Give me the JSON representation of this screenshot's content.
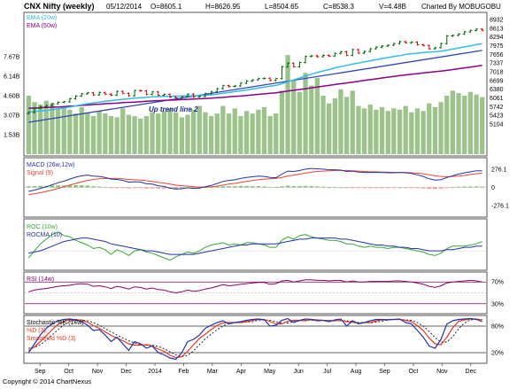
{
  "header": {
    "symbol": "CNX Nifty (weekly)",
    "date": "05/12/2014",
    "open": "O=8605.1",
    "high": "H=8626.95",
    "low": "L=8504.65",
    "close": "C=8538.3",
    "volume": "V=4.48B",
    "credit": "Charted By MOBUGOBU"
  },
  "footer": {
    "copyright": "Copyright © 2014 ChartNexus"
  },
  "colors": {
    "candle_up": "#006400",
    "candle_down": "#cc0000",
    "ema20": "#33bbee",
    "ema50": "#8b008b",
    "trendline": "#3344bb",
    "vol_bar": "#9cc48a",
    "macd": "#2233aa",
    "signal": "#ee4433",
    "hist_pos": "#88c070",
    "hist_neg": "#f09080",
    "roc": "#33aa33",
    "rocma": "#2233aa",
    "rsi": "#880066",
    "stoch_k": "#2233aa",
    "stoch_d": "#ee3322",
    "smoothed_d": "#111111",
    "panel_border": "#555555",
    "level_line": "#800060"
  },
  "chart_data": [
    {
      "type": "candlestick",
      "title": "CNX Nifty (weekly)",
      "y_axis_labels": [
        "8932",
        "8613",
        "8294",
        "7975",
        "7656",
        "7337",
        "7018",
        "6699",
        "6380",
        "6061",
        "5742",
        "5423",
        "5104"
      ],
      "ylim": [
        5104,
        8932
      ],
      "x_axis_labels": [
        "Sep",
        "Oct",
        "Nov",
        "Dec",
        "2014",
        "Feb",
        "Mar",
        "Apr",
        "May",
        "Jun",
        "Jul",
        "Aug",
        "Sep",
        "Oct",
        "Nov",
        "Dec"
      ],
      "legend": [
        "EMA (20w)",
        "EMA (50w)"
      ],
      "annotation": "Up trend line 2",
      "close": [
        5530,
        5680,
        5740,
        5780,
        5850,
        5900,
        5920,
        6030,
        6130,
        6210,
        6250,
        6170,
        6260,
        6200,
        6160,
        6300,
        6230,
        6140,
        6330,
        6320,
        6190,
        6280,
        6160,
        6190,
        6090,
        6060,
        6110,
        6200,
        6100,
        6120,
        6220,
        6280,
        6400,
        6510,
        6480,
        6500,
        6600,
        6680,
        6720,
        6770,
        6780,
        6700,
        6770,
        7200,
        7330,
        7200,
        7360,
        7580,
        7600,
        7570,
        7620,
        7590,
        7690,
        7750,
        7620,
        7830,
        7700,
        7760,
        7860,
        7920,
        7960,
        7990,
        8050,
        8120,
        8080,
        8100,
        8010,
        7980,
        7860,
        7900,
        8050,
        8330,
        8350,
        8400,
        8480,
        8530,
        8580,
        8538
      ],
      "ema_20w": [
        5550,
        5560,
        5580,
        5600,
        5630,
        5660,
        5690,
        5730,
        5770,
        5810,
        5850,
        5880,
        5910,
        5940,
        5960,
        5990,
        6010,
        6030,
        6050,
        6070,
        6080,
        6100,
        6110,
        6120,
        6120,
        6130,
        6130,
        6140,
        6140,
        6150,
        6160,
        6170,
        6200,
        6230,
        6260,
        6290,
        6320,
        6350,
        6390,
        6420,
        6460,
        6490,
        6520,
        6580,
        6650,
        6720,
        6790,
        6860,
        6930,
        6990,
        7050,
        7100,
        7160,
        7210,
        7250,
        7300,
        7340,
        7380,
        7420,
        7460,
        7500,
        7540,
        7580,
        7610,
        7650,
        7680,
        7700,
        7720,
        7740,
        7750,
        7770,
        7810,
        7850,
        7890,
        7930,
        7970,
        8010,
        8050
      ],
      "ema_50w": [
        5680,
        5690,
        5700,
        5710,
        5720,
        5730,
        5740,
        5760,
        5770,
        5790,
        5800,
        5820,
        5830,
        5850,
        5860,
        5870,
        5890,
        5900,
        5910,
        5920,
        5940,
        5950,
        5960,
        5970,
        5980,
        5990,
        6000,
        6010,
        6020,
        6030,
        6040,
        6050,
        6070,
        6080,
        6100,
        6120,
        6130,
        6150,
        6170,
        6190,
        6210,
        6230,
        6250,
        6280,
        6310,
        6340,
        6370,
        6400,
        6430,
        6460,
        6490,
        6520,
        6550,
        6580,
        6610,
        6640,
        6670,
        6700,
        6730,
        6760,
        6790,
        6820,
        6850,
        6880,
        6900,
        6930,
        6950,
        6980,
        7000,
        7020,
        7040,
        7070,
        7100,
        7130,
        7160,
        7190,
        7220,
        7250
      ],
      "trendline": {
        "from": 5170,
        "to": 7800
      }
    },
    {
      "type": "bar",
      "title": "Volume",
      "y_axis_labels": [
        "7.67B",
        "6.14B",
        "4.60B",
        "3.07B",
        "1.53B"
      ],
      "ylim": [
        0,
        9.2
      ],
      "values": [
        4.6,
        4.1,
        3.9,
        4.2,
        4.0,
        3.6,
        3.8,
        3.5,
        3.2,
        3.7,
        3.3,
        3.0,
        3.4,
        3.2,
        3.0,
        2.9,
        3.6,
        3.1,
        3.0,
        2.8,
        3.0,
        3.3,
        3.2,
        3.4,
        3.6,
        3.3,
        2.9,
        3.1,
        3.5,
        3.8,
        3.3,
        3.0,
        3.2,
        3.8,
        3.2,
        3.6,
        3.0,
        3.4,
        3.2,
        3.5,
        3.7,
        3.0,
        3.2,
        5.0,
        7.8,
        5.8,
        4.9,
        6.4,
        5.4,
        6.0,
        4.6,
        4.0,
        4.4,
        5.1,
        4.5,
        5.0,
        3.8,
        3.6,
        3.9,
        3.5,
        3.7,
        3.4,
        3.6,
        3.5,
        3.8,
        3.3,
        3.6,
        3.4,
        4.0,
        3.7,
        4.1,
        4.6,
        5.0,
        4.8,
        4.6,
        4.9,
        4.7,
        4.48
      ]
    },
    {
      "type": "line",
      "title": "MACD (26w,12w)",
      "legend": [
        "MACD (26w,12w)",
        "Signal (9)"
      ],
      "y_axis_labels": [
        "276.1",
        "0",
        "-276.1"
      ],
      "ylim": [
        -420,
        420
      ],
      "macd": [
        -60,
        -40,
        -15,
        10,
        40,
        70,
        95,
        125,
        155,
        175,
        185,
        170,
        165,
        150,
        125,
        120,
        105,
        80,
        85,
        80,
        55,
        50,
        25,
        15,
        -10,
        -25,
        -20,
        -5,
        -15,
        -10,
        10,
        30,
        60,
        90,
        105,
        115,
        135,
        150,
        160,
        170,
        165,
        150,
        145,
        200,
        245,
        240,
        255,
        275,
        285,
        280,
        275,
        265,
        265,
        260,
        240,
        245,
        230,
        225,
        225,
        225,
        225,
        220,
        220,
        225,
        220,
        210,
        190,
        165,
        130,
        110,
        115,
        150,
        175,
        200,
        220,
        235,
        250,
        250
      ],
      "signal": [
        -110,
        -95,
        -80,
        -60,
        -40,
        -15,
        10,
        35,
        60,
        85,
        105,
        120,
        130,
        135,
        135,
        135,
        130,
        120,
        115,
        110,
        100,
        90,
        75,
        65,
        50,
        35,
        25,
        20,
        10,
        5,
        5,
        10,
        20,
        35,
        50,
        60,
        75,
        90,
        105,
        115,
        125,
        130,
        135,
        150,
        170,
        185,
        200,
        215,
        230,
        240,
        245,
        250,
        255,
        255,
        255,
        250,
        245,
        240,
        235,
        235,
        230,
        230,
        225,
        225,
        225,
        220,
        215,
        205,
        190,
        175,
        165,
        160,
        165,
        170,
        180,
        195,
        205,
        215
      ]
    },
    {
      "type": "line",
      "title": "ROC (10w)",
      "legend": [
        "ROC (10w)",
        "ROCMA (10)"
      ],
      "ylim": [
        -15,
        25
      ],
      "roc": [
        -6,
        0,
        6,
        10,
        14,
        16,
        13,
        12,
        9,
        7,
        5,
        2,
        3,
        1,
        -3,
        1,
        -1,
        -4,
        0,
        1,
        -1,
        -2,
        -4,
        -6,
        -8,
        -5,
        -3,
        -1,
        -2,
        0,
        3,
        5,
        6,
        7,
        5,
        6,
        5,
        7,
        7,
        6,
        5,
        3,
        3,
        9,
        12,
        10,
        13,
        14,
        12,
        11,
        10,
        9,
        9,
        8,
        6,
        6,
        4,
        3,
        4,
        3,
        3,
        2,
        3,
        3,
        2,
        1,
        0,
        -1,
        -3,
        -4,
        -2,
        2,
        4,
        4,
        4,
        5,
        6,
        8
      ],
      "rocma": [
        -2,
        -1,
        0,
        2,
        4,
        6,
        8,
        9,
        10,
        11,
        11,
        10,
        9,
        8,
        6,
        5,
        4,
        3,
        2,
        1,
        0,
        0,
        -1,
        -2,
        -3,
        -3,
        -3,
        -3,
        -3,
        -2,
        -1,
        0,
        1,
        2,
        3,
        4,
        5,
        5,
        6,
        6,
        6,
        6,
        6,
        7,
        8,
        9,
        10,
        10,
        11,
        11,
        11,
        11,
        11,
        10,
        10,
        9,
        8,
        7,
        6,
        5,
        5,
        4,
        4,
        3,
        3,
        2,
        2,
        1,
        0,
        0,
        0,
        1,
        1,
        2,
        3,
        3,
        4,
        4
      ]
    },
    {
      "type": "line",
      "title": "RSI (14w)",
      "y_axis_labels": [
        "70%",
        "30%"
      ],
      "ylim": [
        15,
        85
      ],
      "rsi": [
        52,
        55,
        57,
        58,
        60,
        62,
        63,
        64,
        66,
        67,
        66,
        62,
        63,
        61,
        58,
        62,
        60,
        57,
        61,
        60,
        57,
        59,
        56,
        55,
        52,
        50,
        52,
        55,
        53,
        54,
        57,
        59,
        62,
        65,
        63,
        64,
        66,
        67,
        68,
        69,
        69,
        66,
        67,
        72,
        73,
        70,
        72,
        74,
        74,
        73,
        73,
        72,
        73,
        73,
        70,
        72,
        70,
        70,
        71,
        71,
        71,
        71,
        72,
        72,
        71,
        70,
        68,
        66,
        62,
        60,
        63,
        68,
        70,
        71,
        72,
        73,
        72,
        70
      ]
    },
    {
      "type": "line",
      "title": "Stochastic %K (14w)",
      "legend": [
        "Stochastic %K (14w)",
        "%D (3)",
        "Smoothed %D (3)"
      ],
      "y_axis_labels": [
        "80%",
        "20%"
      ],
      "ylim": [
        0,
        100
      ],
      "k": [
        20,
        40,
        60,
        75,
        85,
        92,
        95,
        96,
        94,
        90,
        82,
        70,
        72,
        60,
        45,
        55,
        40,
        25,
        45,
        40,
        30,
        35,
        20,
        15,
        8,
        5,
        20,
        45,
        50,
        60,
        75,
        82,
        88,
        92,
        85,
        88,
        90,
        93,
        95,
        96,
        94,
        80,
        82,
        93,
        97,
        88,
        93,
        96,
        95,
        92,
        93,
        90,
        94,
        96,
        80,
        92,
        85,
        88,
        92,
        95,
        95,
        94,
        95,
        96,
        88,
        85,
        70,
        55,
        35,
        30,
        50,
        85,
        92,
        95,
        96,
        97,
        95,
        90
      ],
      "d": [
        25,
        33,
        45,
        58,
        72,
        84,
        91,
        94,
        95,
        93,
        89,
        81,
        75,
        67,
        59,
        53,
        47,
        40,
        37,
        37,
        38,
        35,
        28,
        23,
        14,
        9,
        11,
        23,
        38,
        52,
        62,
        72,
        82,
        87,
        88,
        88,
        88,
        90,
        93,
        95,
        95,
        90,
        85,
        85,
        91,
        93,
        93,
        92,
        95,
        94,
        93,
        92,
        92,
        93,
        90,
        89,
        86,
        88,
        88,
        92,
        94,
        95,
        95,
        95,
        93,
        90,
        81,
        70,
        53,
        40,
        38,
        55,
        76,
        91,
        94,
        96,
        96,
        94
      ],
      "smoothed_d": [
        30,
        32,
        38,
        48,
        60,
        72,
        83,
        90,
        93,
        94,
        92,
        88,
        82,
        74,
        67,
        60,
        53,
        47,
        42,
        38,
        37,
        37,
        34,
        29,
        22,
        15,
        11,
        14,
        24,
        38,
        51,
        62,
        72,
        80,
        86,
        88,
        88,
        89,
        90,
        93,
        94,
        93,
        90,
        87,
        87,
        90,
        92,
        93,
        93,
        94,
        93,
        93,
        92,
        92,
        92,
        91,
        88,
        88,
        87,
        89,
        91,
        94,
        95,
        95,
        94,
        93,
        88,
        80,
        68,
        54,
        44,
        44,
        56,
        74,
        87,
        94,
        95,
        95
      ]
    }
  ]
}
